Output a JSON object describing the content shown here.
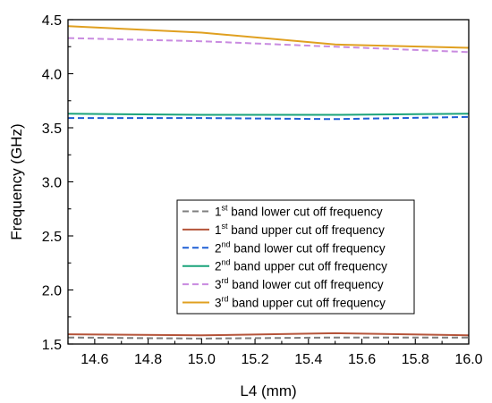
{
  "chart_data": {
    "type": "line",
    "xlabel": "L4 (mm)",
    "ylabel": "Frequency (GHz)",
    "xlim": [
      14.5,
      16.0
    ],
    "ylim": [
      1.5,
      4.5
    ],
    "xticks": [
      "14.6",
      "14.8",
      "15.0",
      "15.2",
      "15.4",
      "15.6",
      "15.8",
      "16.0"
    ],
    "yticks": [
      "1.5",
      "2.0",
      "2.5",
      "3.0",
      "3.5",
      "4.0",
      "4.5"
    ],
    "grid": false,
    "legend_position": "bottom-right",
    "series": [
      {
        "ordinal": "1",
        "suffix": "st",
        "rest": " band lower cut off frequency",
        "color": "#7f7f7f",
        "dash": "dashed",
        "x": [
          14.5,
          15.0,
          15.5,
          16.0
        ],
        "y": [
          1.56,
          1.55,
          1.56,
          1.56
        ]
      },
      {
        "ordinal": "1",
        "suffix": "st",
        "rest": " band upper cut off frequency",
        "color": "#b5543a",
        "dash": "solid",
        "x": [
          14.5,
          15.0,
          15.5,
          16.0
        ],
        "y": [
          1.59,
          1.58,
          1.6,
          1.58
        ]
      },
      {
        "ordinal": "2",
        "suffix": "nd",
        "rest": " band lower cut off frequency",
        "color": "#1f5fd6",
        "dash": "dashed",
        "x": [
          14.5,
          15.0,
          15.5,
          16.0
        ],
        "y": [
          3.59,
          3.59,
          3.58,
          3.6
        ]
      },
      {
        "ordinal": "2",
        "suffix": "nd",
        "rest": " band upper cut off frequency",
        "color": "#1aa37a",
        "dash": "solid",
        "x": [
          14.5,
          15.0,
          15.5,
          16.0
        ],
        "y": [
          3.63,
          3.62,
          3.62,
          3.63
        ]
      },
      {
        "ordinal": "3",
        "suffix": "rd",
        "rest": " band lower cut off frequency",
        "color": "#c98be0",
        "dash": "dashed",
        "x": [
          14.5,
          15.0,
          15.5,
          16.0
        ],
        "y": [
          4.33,
          4.3,
          4.25,
          4.2
        ]
      },
      {
        "ordinal": "3",
        "suffix": "rd",
        "rest": " band upper cut off frequency",
        "color": "#e0a020",
        "dash": "solid",
        "x": [
          14.5,
          15.0,
          15.5,
          16.0
        ],
        "y": [
          4.44,
          4.38,
          4.27,
          4.24
        ]
      }
    ]
  }
}
